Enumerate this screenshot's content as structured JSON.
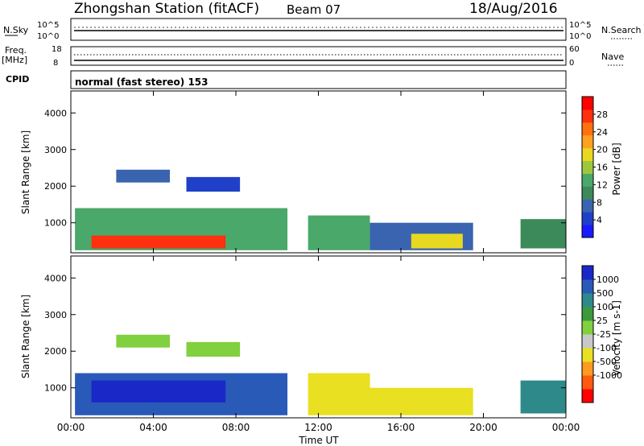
{
  "header": {
    "station": "Zhongshan Station (fitACF)",
    "beam": "Beam 07",
    "date": "18/Aug/2016"
  },
  "strip_panels": {
    "sky": {
      "label": "N.Sky",
      "ticks_left": [
        "10^5",
        "10^0"
      ],
      "right_label": "N.Search",
      "ticks_right": [
        "10^5",
        "10^0"
      ]
    },
    "freq": {
      "label_line1": "Freq.",
      "label_line2": "[MHz]",
      "ticks_left": [
        "18",
        "8"
      ],
      "right_label": "Nave",
      "ticks_right": [
        "60",
        "0"
      ]
    },
    "cpid": {
      "label": "CPID",
      "mode_text": "normal (fast stereo) 153"
    }
  },
  "colors": {
    "power_scale": [
      "#1a1aff",
      "#2040c8",
      "#3a64b0",
      "#3c8a5a",
      "#4aa86a",
      "#9ec83c",
      "#e8d820",
      "#ffa020",
      "#ff7010",
      "#ff3010",
      "#ff0000"
    ],
    "velocity_scale": [
      "#1a28c8",
      "#2a5ab8",
      "#2e8a8a",
      "#3c9a3c",
      "#80d040",
      "#c8c8c8",
      "#e8e020",
      "#ff9a20",
      "#ff5a10",
      "#ff0000"
    ]
  },
  "chart_data": [
    {
      "type": "heatmap",
      "name": "power",
      "ylabel": "Slant Range [km]",
      "yticks": [
        "1000",
        "2000",
        "3000",
        "4000"
      ],
      "ylim": [
        180,
        4600
      ],
      "xlim": [
        0,
        24
      ],
      "colorbar": {
        "label": "Power [dB]",
        "ticks": [
          "4",
          "8",
          "12",
          "16",
          "20",
          "24",
          "28"
        ],
        "range": [
          0,
          32
        ]
      },
      "regions": [
        {
          "x0": 0.2,
          "x1": 10.5,
          "y0": 250,
          "y1": 1400,
          "value": 12
        },
        {
          "x0": 1.0,
          "x1": 7.5,
          "y0": 300,
          "y1": 650,
          "value": 27
        },
        {
          "x0": 2.2,
          "x1": 4.8,
          "y0": 2100,
          "y1": 2450,
          "value": 6
        },
        {
          "x0": 5.6,
          "x1": 8.2,
          "y0": 1850,
          "y1": 2250,
          "value": 5
        },
        {
          "x0": 11.5,
          "x1": 14.5,
          "y0": 250,
          "y1": 1200,
          "value": 14
        },
        {
          "x0": 14.5,
          "x1": 19.5,
          "y0": 250,
          "y1": 1000,
          "value": 8
        },
        {
          "x0": 16.5,
          "x1": 19.0,
          "y0": 300,
          "y1": 700,
          "value": 18
        },
        {
          "x0": 21.8,
          "x1": 24.0,
          "y0": 300,
          "y1": 1100,
          "value": 9
        }
      ]
    },
    {
      "type": "heatmap",
      "name": "velocity",
      "ylabel": "Slant Range [km]",
      "yticks": [
        "1000",
        "2000",
        "3000",
        "4000"
      ],
      "ylim": [
        180,
        4600
      ],
      "xlim": [
        0,
        24
      ],
      "xticks": [
        "00:00",
        "04:00",
        "08:00",
        "12:00",
        "16:00",
        "20:00",
        "00:00"
      ],
      "xlabel": "Time UT",
      "colorbar": {
        "label": "Velocity [m s-1]",
        "ticks": [
          "1000",
          "500",
          "100",
          "25",
          "-25",
          "-100",
          "-500",
          "-1000"
        ]
      },
      "regions": [
        {
          "x0": 0.2,
          "x1": 10.5,
          "y0": 250,
          "y1": 1400,
          "value": 800
        },
        {
          "x0": 1.0,
          "x1": 7.5,
          "y0": 600,
          "y1": 1200,
          "value": 1000
        },
        {
          "x0": 2.2,
          "x1": 4.8,
          "y0": 2100,
          "y1": 2450,
          "value": 0
        },
        {
          "x0": 5.6,
          "x1": 8.2,
          "y0": 1850,
          "y1": 2250,
          "value": 0
        },
        {
          "x0": 11.5,
          "x1": 14.5,
          "y0": 250,
          "y1": 1400,
          "value": -200
        },
        {
          "x0": 14.5,
          "x1": 19.5,
          "y0": 250,
          "y1": 1000,
          "value": -150
        },
        {
          "x0": 21.8,
          "x1": 24.0,
          "y0": 300,
          "y1": 1200,
          "value": 200
        }
      ]
    }
  ]
}
